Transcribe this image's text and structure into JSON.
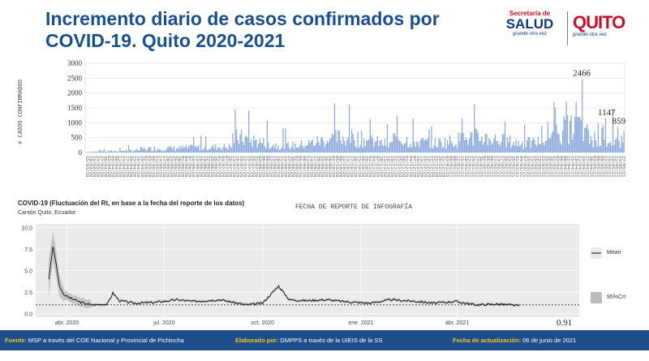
{
  "header": {
    "title": "Incremento diario de casos confirmados por COVID-19. Quito 2020-2021"
  },
  "logos": {
    "salud_top": "Secretaría de",
    "salud_main": "SALUD",
    "salud_tag": "grande otra vez",
    "quito_main": "QUITO",
    "quito_tag": "grande otra vez"
  },
  "chart_data": [
    {
      "type": "bar",
      "title": "Incremento diario de casos confirmados por COVID-19. Quito 2020-2021",
      "xlabel": "FECHA DE REPORTE DE INFOGRAFÍA",
      "ylabel": "# CASOS CONFIRMADOS",
      "ylim": [
        0,
        3000
      ],
      "yticks": [
        "0",
        "500",
        "1000",
        "1500",
        "2000",
        "2500",
        "3000"
      ],
      "n_days": 440,
      "peaks": [
        {
          "day": 405,
          "value": 2466
        },
        {
          "day": 424,
          "value": 1147
        },
        {
          "day": 434,
          "value": 859
        }
      ],
      "annotations": [
        "2466",
        "1147",
        "859"
      ],
      "color": "#8eaadb"
    },
    {
      "type": "line",
      "title": "COVID-19 (Fluctuación del Rt, en base a la fecha del reporte de los datos)",
      "subtitle": "Cantón Quito, Ecuador",
      "ylim": [
        0,
        10
      ],
      "yticks": [
        "0.0",
        "2.5",
        "5.0",
        "7.5",
        "10.0"
      ],
      "xticks": [
        "abr. 2020",
        "jul. 2020",
        "oct. 2020",
        "ene. 2021",
        "abr. 2021"
      ],
      "reference_line": 1,
      "final_value": "0.91",
      "legend": [
        "Mean",
        "95%CrI"
      ],
      "keypoints": [
        {
          "day": 0,
          "value": 4.0
        },
        {
          "day": 4,
          "value": 7.8
        },
        {
          "day": 7,
          "value": 5.8
        },
        {
          "day": 10,
          "value": 3.2
        },
        {
          "day": 14,
          "value": 2.2
        },
        {
          "day": 20,
          "value": 1.8
        },
        {
          "day": 30,
          "value": 1.3
        },
        {
          "day": 40,
          "value": 1.0
        },
        {
          "day": 55,
          "value": 1.1
        },
        {
          "day": 60,
          "value": 2.4
        },
        {
          "day": 66,
          "value": 1.5
        },
        {
          "day": 80,
          "value": 1.2
        },
        {
          "day": 100,
          "value": 1.3
        },
        {
          "day": 120,
          "value": 1.6
        },
        {
          "day": 135,
          "value": 1.4
        },
        {
          "day": 160,
          "value": 1.6
        },
        {
          "day": 185,
          "value": 1.0
        },
        {
          "day": 200,
          "value": 1.2
        },
        {
          "day": 215,
          "value": 3.2
        },
        {
          "day": 225,
          "value": 1.6
        },
        {
          "day": 240,
          "value": 1.5
        },
        {
          "day": 260,
          "value": 1.6
        },
        {
          "day": 275,
          "value": 1.4
        },
        {
          "day": 300,
          "value": 1.2
        },
        {
          "day": 320,
          "value": 1.6
        },
        {
          "day": 345,
          "value": 1.4
        },
        {
          "day": 360,
          "value": 1.2
        },
        {
          "day": 380,
          "value": 1.4
        },
        {
          "day": 400,
          "value": 1.0
        },
        {
          "day": 420,
          "value": 1.1
        },
        {
          "day": 440,
          "value": 0.91
        }
      ]
    }
  ],
  "footer": {
    "fuente_label": "Fuente",
    "fuente_text": ": MSP a través del COE Nacional y Provincial de Pichincha",
    "elaborado_label": "Elaborado por:",
    "elaborado_text": " DMPPS  a través de la UIEIS  de la SS",
    "fecha_label": "Fecha de actualización:",
    "fecha_text": " 06 de junio de 2021"
  }
}
